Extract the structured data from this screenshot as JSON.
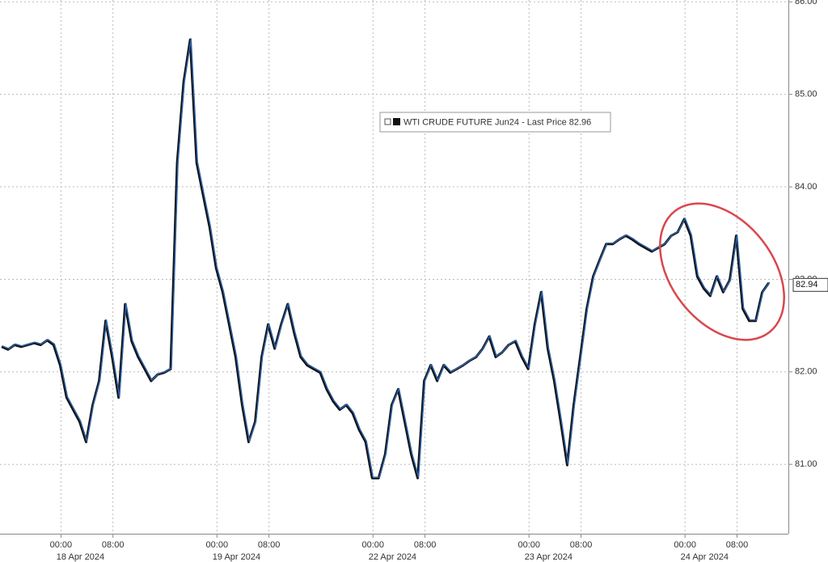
{
  "chart_data": {
    "type": "line",
    "series": [
      {
        "name": "WTI CRUDE FUTURE Jun24 - Last Price",
        "color": "#2b5fa3",
        "values": [
          82.28,
          82.25,
          82.3,
          82.28,
          82.3,
          82.32,
          82.3,
          82.35,
          82.3,
          82.08,
          81.73,
          81.6,
          81.47,
          81.25,
          81.65,
          81.91,
          82.56,
          82.17,
          81.73,
          82.74,
          82.34,
          82.17,
          82.04,
          81.91,
          81.98,
          82.0,
          82.04,
          84.27,
          85.14,
          85.6,
          84.27,
          83.92,
          83.57,
          83.13,
          82.87,
          82.52,
          82.17,
          81.65,
          81.25,
          81.47,
          82.17,
          82.52,
          82.26,
          82.52,
          82.74,
          82.43,
          82.17,
          82.08,
          82.04,
          82.0,
          81.82,
          81.69,
          81.6,
          81.65,
          81.56,
          81.38,
          81.25,
          80.86,
          80.86,
          81.12,
          81.65,
          81.82,
          81.47,
          81.12,
          80.86,
          81.91,
          82.08,
          81.91,
          82.08,
          82.0,
          82.04,
          82.08,
          82.13,
          82.17,
          82.26,
          82.39,
          82.17,
          82.22,
          82.3,
          82.34,
          82.17,
          82.04,
          82.52,
          82.87,
          82.26,
          81.91,
          81.47,
          81.0,
          81.65,
          82.17,
          82.69,
          83.04,
          83.22,
          83.39,
          83.39,
          83.44,
          83.48,
          83.44,
          83.39,
          83.35,
          83.31,
          83.35,
          83.39,
          83.48,
          83.52,
          83.66,
          83.48,
          83.04,
          82.91,
          82.83,
          83.04,
          82.87,
          83.0,
          83.48,
          82.69,
          82.56,
          82.56,
          82.87,
          82.97
        ]
      }
    ],
    "legend_value": 82.96,
    "last_value_label": 82.94,
    "categories": [
      null,
      null,
      null,
      null,
      null,
      null,
      null,
      null,
      null,
      "00:00",
      null,
      null,
      null,
      null,
      null,
      null,
      null,
      "08:00",
      null,
      null,
      null,
      null,
      null,
      null,
      null,
      null,
      null,
      null,
      null,
      null,
      null,
      null,
      null,
      "00:00",
      null,
      null,
      null,
      null,
      null,
      null,
      null,
      "08:00",
      null,
      null,
      null,
      null,
      null,
      null,
      null,
      null,
      null,
      null,
      null,
      null,
      null,
      null,
      null,
      "00:00",
      null,
      null,
      null,
      null,
      null,
      null,
      null,
      "08:00",
      null,
      null,
      null,
      null,
      null,
      null,
      null,
      null,
      null,
      null,
      null,
      null,
      null,
      null,
      null,
      "00:00",
      null,
      null,
      null,
      null,
      null,
      null,
      null,
      "08:00",
      null,
      null,
      null,
      null,
      null,
      null,
      null,
      null,
      null,
      null,
      null,
      null,
      null,
      null,
      null,
      "00:00",
      null,
      null,
      null,
      null,
      null,
      null,
      null,
      "08:00",
      null,
      null,
      null,
      null,
      null
    ],
    "date_categories": [
      null,
      null,
      null,
      null,
      null,
      null,
      null,
      null,
      null,
      null,
      null,
      null,
      "18 Apr 2024",
      null,
      null,
      null,
      null,
      null,
      null,
      null,
      null,
      null,
      null,
      null,
      null,
      null,
      null,
      null,
      null,
      null,
      null,
      null,
      null,
      null,
      null,
      null,
      "19 Apr 2024",
      null,
      null,
      null,
      null,
      null,
      null,
      null,
      null,
      null,
      null,
      null,
      null,
      null,
      null,
      null,
      null,
      null,
      null,
      null,
      null,
      null,
      null,
      null,
      "22 Apr 2024",
      null,
      null,
      null,
      null,
      null,
      null,
      null,
      null,
      null,
      null,
      null,
      null,
      null,
      null,
      null,
      null,
      null,
      null,
      null,
      null,
      null,
      null,
      null,
      "23 Apr 2024",
      null,
      null,
      null,
      null,
      null,
      null,
      null,
      null,
      null,
      null,
      null,
      null,
      null,
      null,
      null,
      null,
      null,
      null,
      null,
      null,
      null,
      null,
      null,
      "24 Apr 2024",
      null,
      null,
      null,
      null,
      null,
      null,
      null,
      null,
      null,
      null
    ],
    "ylim": [
      80.25,
      86.02
    ],
    "yticks": [
      {
        "value": 81,
        "label": "81.00"
      },
      {
        "value": 82,
        "label": "82.00"
      },
      {
        "value": 83,
        "label": "83.00"
      },
      {
        "value": 84,
        "label": "84.00"
      },
      {
        "value": 85,
        "label": "85.00"
      },
      {
        "value": 86,
        "label": "86.00"
      }
    ],
    "grid": true
  }
}
